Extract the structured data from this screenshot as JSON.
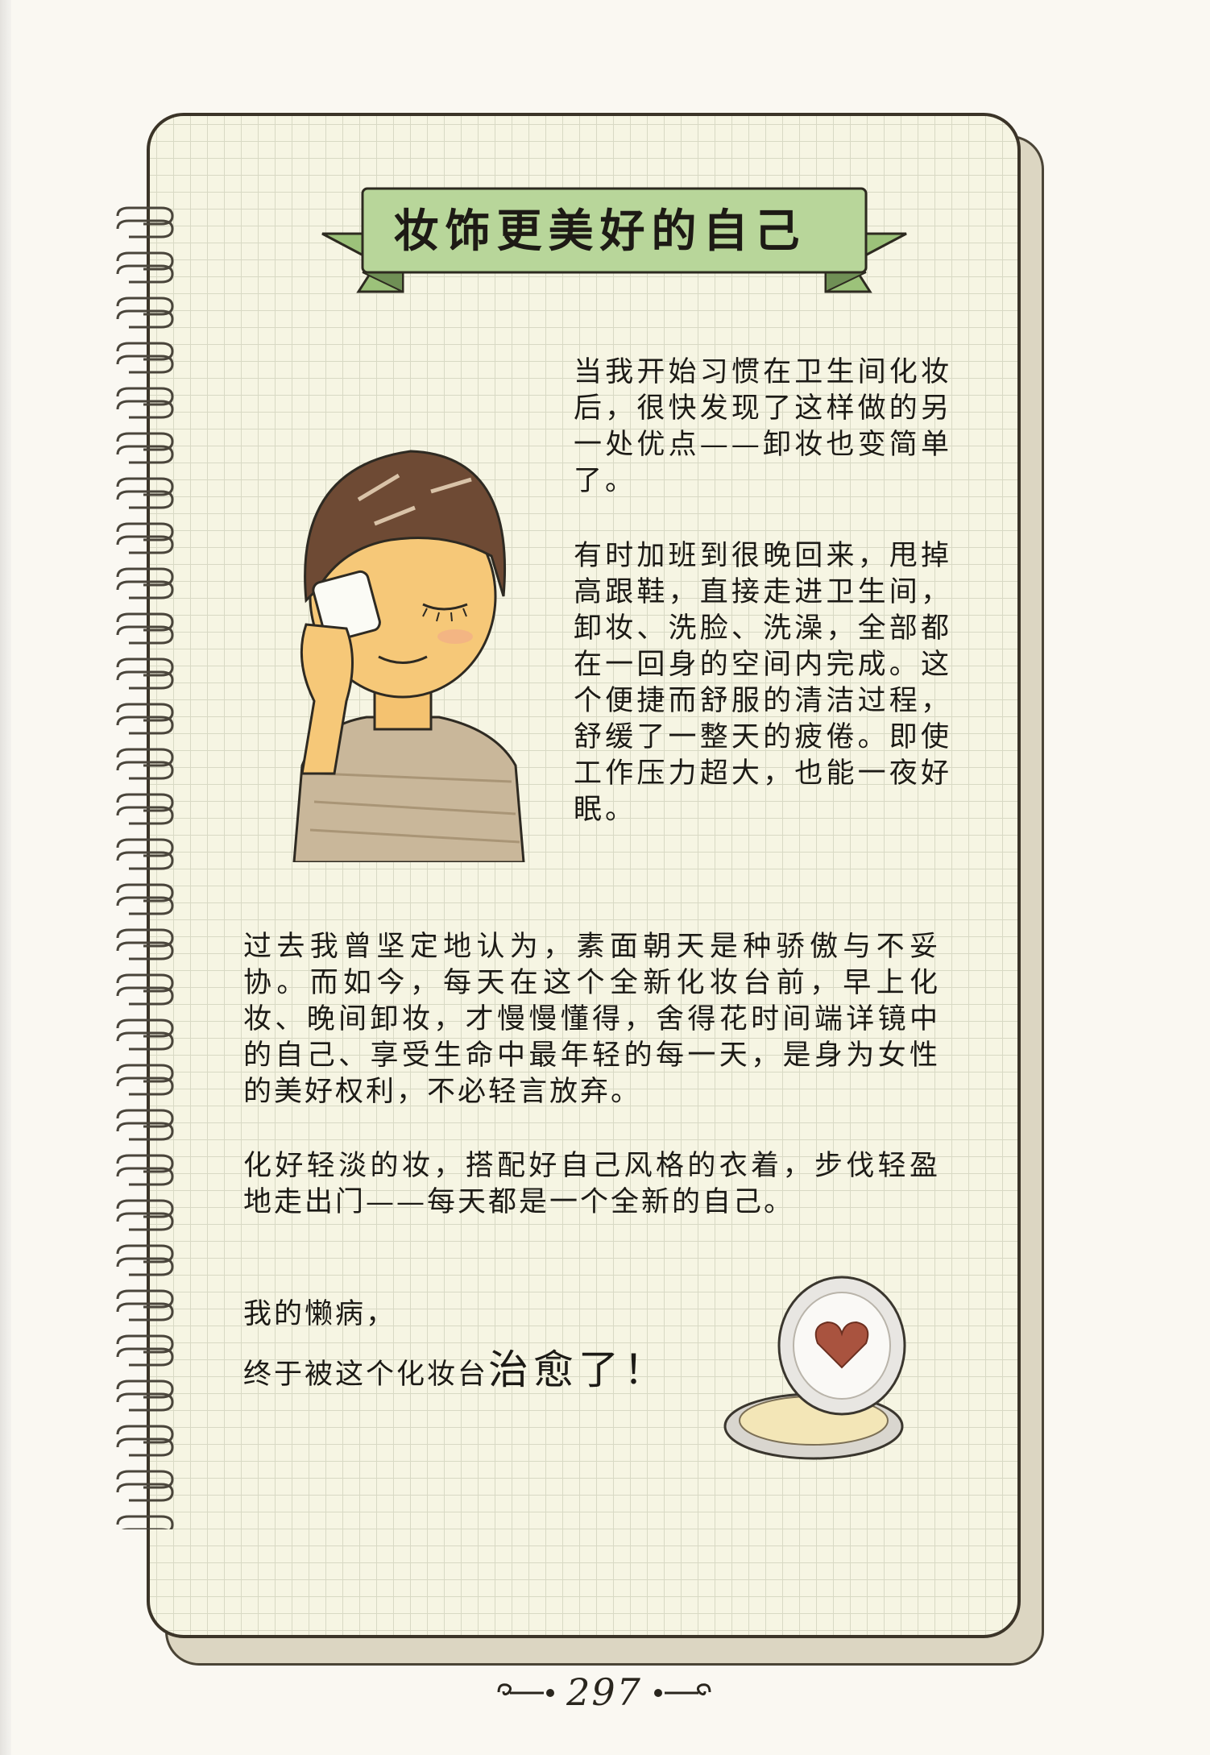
{
  "title": "妆饰更美好的自己",
  "paragraphs": [
    "当我开始习惯在卫生间化妆后，很快发现了这样做的另一处优点——卸妆也变简单了。",
    "有时加班到很晚回来，甩掉高跟鞋，直接走进卫生间，卸妆、洗脸、洗澡，全部都在一回身的空间内完成。这个便捷而舒服的清洁过程，舒缓了一整天的疲倦。即使工作压力超大，也能一夜好眠。",
    "过去我曾坚定地认为，素面朝天是种骄傲与不妥协。而如今，每天在这个全新化妆台前，早上化妆、晚间卸妆，才慢慢懂得，舍得花时间端详镜中的自己、享受生命中最年轻的每一天，是身为女性的美好权利，不必轻言放弃。",
    "化好轻淡的妆，搭配好自己风格的衣着，步伐轻盈地走出门——每天都是一个全新的自己。"
  ],
  "closing": {
    "line1": "我的懒病，",
    "line2_prefix": "终于被这个化妆台",
    "line2_emphasis": "治愈了！"
  },
  "page_number": "297",
  "colors": {
    "ribbon": "#b8d69a",
    "ribbon_dark": "#9cc27a",
    "grid": "#d8d9c4",
    "paper": "#f6f5e3"
  },
  "icons": [
    "spiral-binding-icon",
    "girl-removing-makeup-illustration",
    "powder-compact-heart-icon",
    "swirl-ornament-icon"
  ]
}
